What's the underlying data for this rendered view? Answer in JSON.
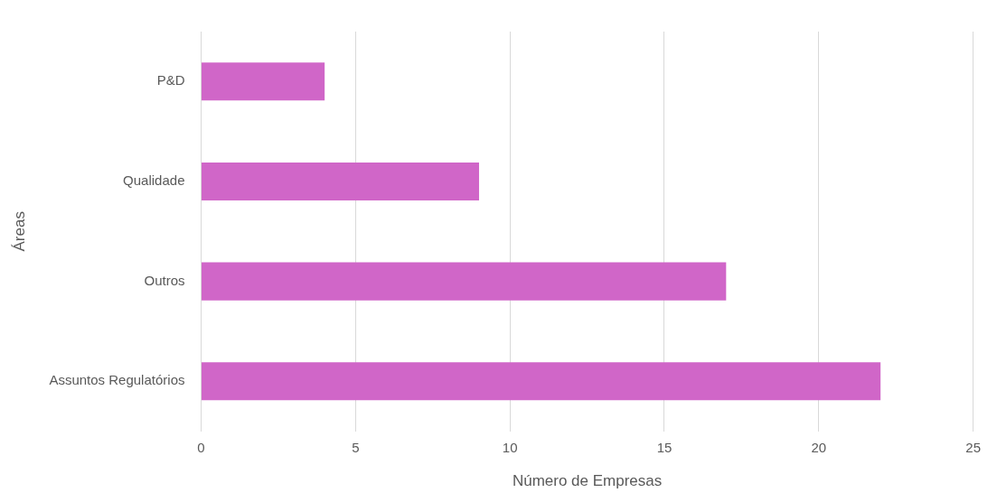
{
  "chart_data": {
    "type": "bar",
    "orientation": "horizontal",
    "xlabel": "Número de Empresas",
    "ylabel": "Áreas",
    "categories": [
      "P&D",
      "Qualidade",
      "Outros",
      "Assuntos Regulatórios"
    ],
    "values": [
      4,
      9,
      17,
      22
    ],
    "color": "#d066c8",
    "xlim": [
      0,
      25
    ],
    "xticks": [
      0,
      5,
      10,
      15,
      20,
      25
    ],
    "grid": "x",
    "legend": false
  }
}
